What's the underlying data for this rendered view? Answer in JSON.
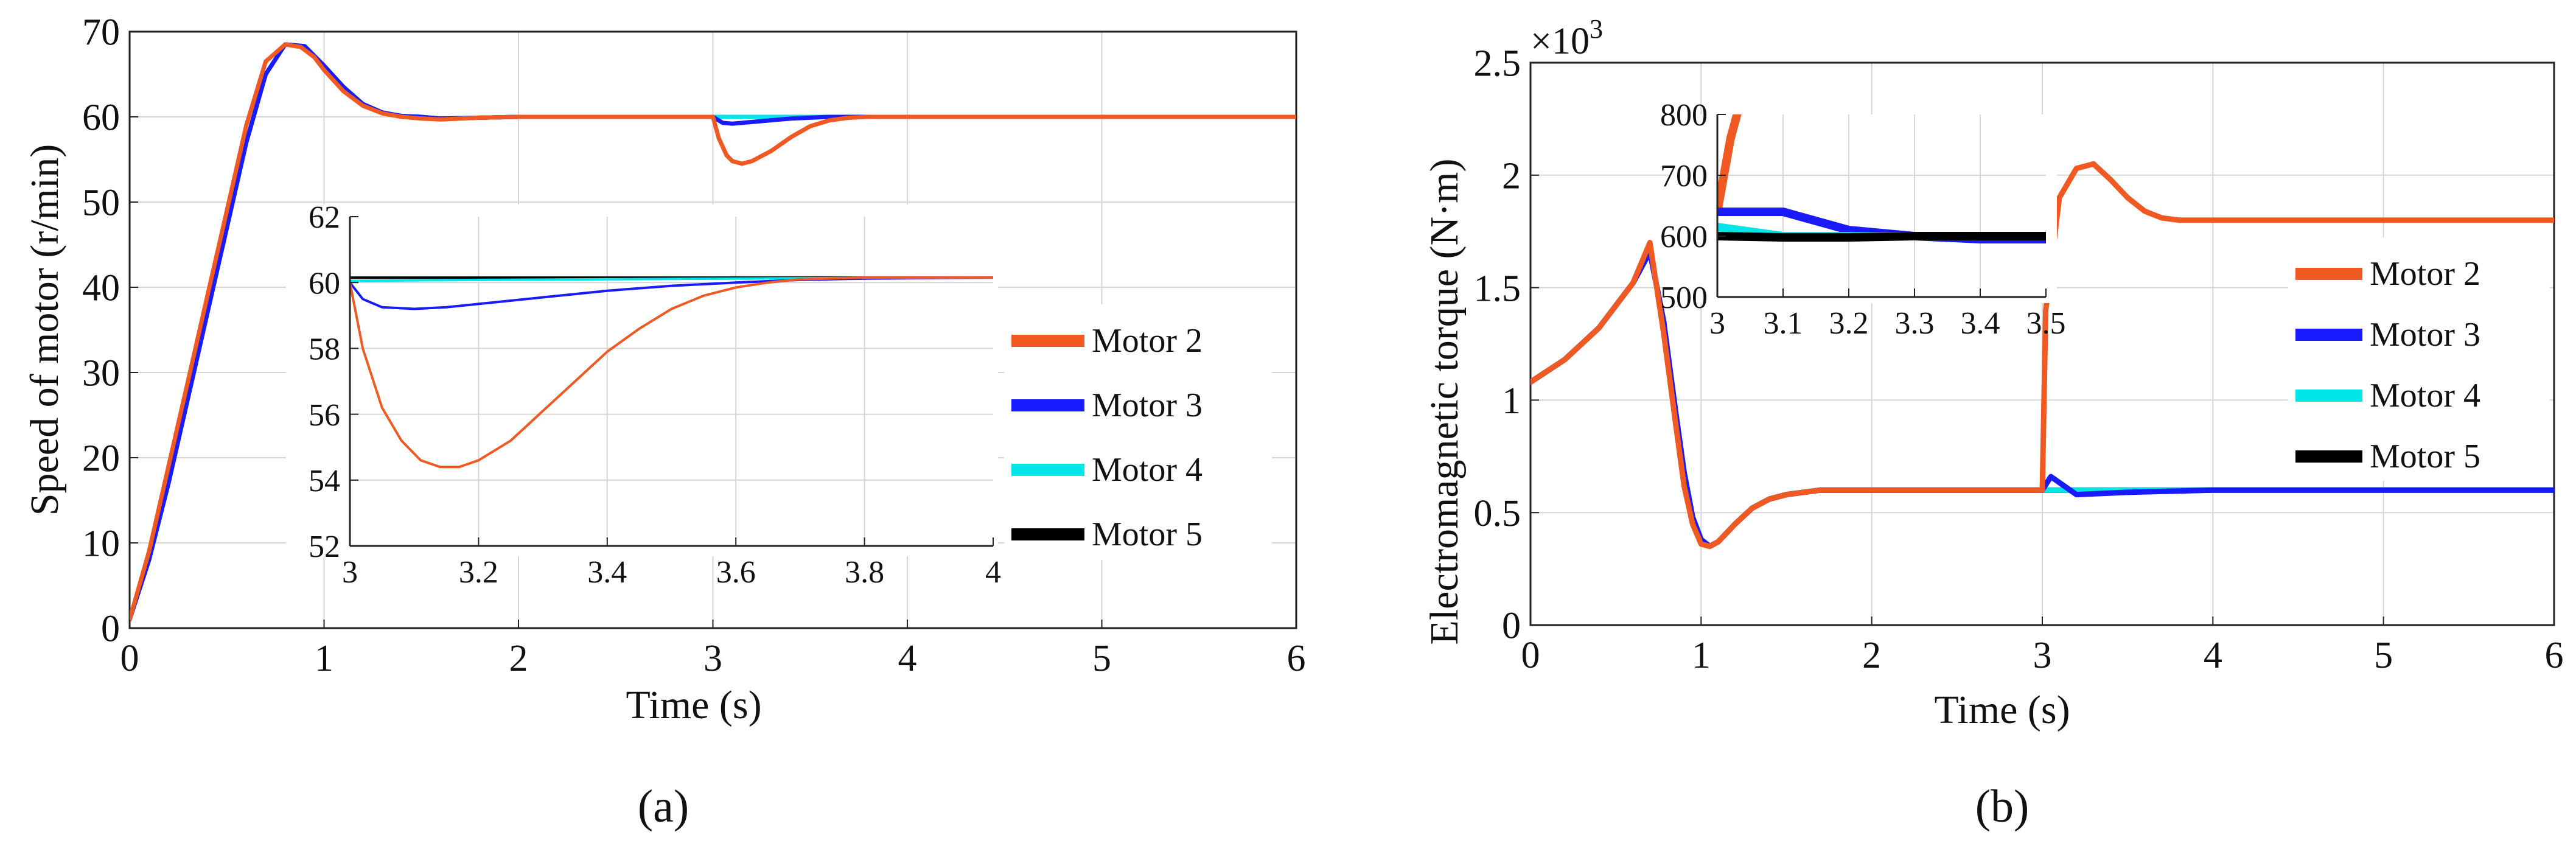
{
  "figure": {
    "panel_a_tag": "(a)",
    "panel_b_tag": "(b)"
  },
  "colors": {
    "Motor 2": "#f05a22",
    "Motor 3": "#1a1aff",
    "Motor 4": "#00e5e5",
    "Motor 5": "#000000",
    "axis": "#222222",
    "grid": "#d6d6d6"
  },
  "chart_data": [
    {
      "id": "a",
      "type": "line",
      "xlabel": "Time (s)",
      "ylabel": "Speed of motor  (r/min)",
      "xlim": [
        0,
        6
      ],
      "ylim": [
        0,
        70
      ],
      "xticks": [
        "0",
        "1",
        "2",
        "3",
        "4",
        "5",
        "6"
      ],
      "yticks": [
        "0",
        "10",
        "20",
        "30",
        "40",
        "50",
        "60",
        "70"
      ],
      "grid": true,
      "legend": [
        "Motor 2",
        "Motor 3",
        "Motor 4",
        "Motor 5"
      ],
      "legend_placement": "right",
      "series": [
        {
          "name": "Motor 5",
          "x": [
            0,
            0.1,
            0.2,
            0.3,
            0.4,
            0.5,
            0.6,
            0.7,
            0.8,
            0.9,
            1.0,
            1.1,
            1.2,
            1.3,
            1.4,
            1.5,
            1.6,
            1.8,
            2,
            3,
            4,
            5,
            6
          ],
          "y": [
            1,
            8,
            17,
            27,
            37,
            47,
            57,
            65,
            68.5,
            68.3,
            66,
            63.5,
            61.5,
            60.5,
            60.1,
            60,
            59.8,
            59.9,
            60,
            60,
            60,
            60,
            60
          ]
        },
        {
          "name": "Motor 4",
          "x": [
            0,
            0.1,
            0.2,
            0.3,
            0.4,
            0.5,
            0.6,
            0.7,
            0.8,
            0.9,
            1.0,
            1.1,
            1.2,
            1.3,
            1.4,
            1.5,
            1.6,
            1.8,
            2,
            3,
            4,
            5,
            6
          ],
          "y": [
            1,
            8,
            17,
            27,
            37,
            47,
            57,
            65,
            68.5,
            68.3,
            66,
            63.5,
            61.5,
            60.5,
            60.1,
            60,
            59.8,
            59.9,
            60,
            60,
            60,
            60,
            60
          ]
        },
        {
          "name": "Motor 3",
          "x": [
            0,
            0.1,
            0.2,
            0.3,
            0.4,
            0.5,
            0.6,
            0.7,
            0.8,
            0.9,
            1.0,
            1.1,
            1.2,
            1.3,
            1.4,
            1.5,
            1.6,
            1.8,
            2,
            3,
            3.05,
            3.1,
            3.2,
            3.3,
            3.4,
            3.6,
            3.8,
            4,
            5,
            6
          ],
          "y": [
            1,
            8,
            17,
            27,
            37,
            47,
            57,
            65,
            68.5,
            68.3,
            66,
            63.5,
            61.5,
            60.5,
            60.1,
            60,
            59.8,
            59.9,
            60,
            60,
            59.3,
            59.2,
            59.4,
            59.6,
            59.8,
            60,
            60,
            60,
            60,
            60
          ]
        },
        {
          "name": "Motor 2",
          "x": [
            0,
            0.1,
            0.2,
            0.3,
            0.4,
            0.5,
            0.6,
            0.7,
            0.8,
            0.88,
            0.95,
            1.0,
            1.1,
            1.2,
            1.3,
            1.4,
            1.5,
            1.6,
            1.8,
            2,
            3,
            3.03,
            3.07,
            3.1,
            3.15,
            3.2,
            3.3,
            3.4,
            3.5,
            3.6,
            3.7,
            3.8,
            4,
            5,
            6
          ],
          "y": [
            1,
            9,
            19,
            29,
            39,
            49,
            59,
            66.5,
            68.5,
            68.2,
            67,
            65.5,
            63,
            61.3,
            60.4,
            60,
            59.8,
            59.7,
            59.9,
            60,
            60,
            57.5,
            55.5,
            54.8,
            54.5,
            54.8,
            56,
            57.6,
            58.9,
            59.6,
            59.9,
            60,
            60,
            60,
            60
          ]
        }
      ],
      "inset": {
        "xlim": [
          3,
          4
        ],
        "ylim": [
          52,
          62
        ],
        "xticks": [
          "3",
          "3.2",
          "3.4",
          "3.6",
          "3.8",
          "4"
        ],
        "yticks": [
          "52",
          "54",
          "56",
          "58",
          "60",
          "62"
        ],
        "series": [
          {
            "name": "Motor 5",
            "x": [
              3,
              3.2,
              3.4,
              3.6,
              3.8,
              4
            ],
            "y": [
              60.15,
              60.15,
              60.15,
              60.15,
              60.15,
              60.15
            ]
          },
          {
            "name": "Motor 4",
            "x": [
              3,
              3.2,
              3.4,
              3.6,
              3.8,
              4
            ],
            "y": [
              60.05,
              60.08,
              60.1,
              60.12,
              60.14,
              60.15
            ]
          },
          {
            "name": "Motor 3",
            "x": [
              3,
              3.02,
              3.05,
              3.1,
              3.15,
              3.2,
              3.3,
              3.4,
              3.5,
              3.6,
              3.7,
              3.8,
              4
            ],
            "y": [
              60,
              59.5,
              59.25,
              59.2,
              59.25,
              59.35,
              59.55,
              59.75,
              59.9,
              60,
              60.08,
              60.12,
              60.15
            ]
          },
          {
            "name": "Motor 2",
            "x": [
              3,
              3.02,
              3.05,
              3.08,
              3.11,
              3.14,
              3.17,
              3.2,
              3.25,
              3.3,
              3.35,
              3.4,
              3.45,
              3.5,
              3.55,
              3.6,
              3.65,
              3.7,
              3.8,
              3.9,
              4
            ],
            "y": [
              60,
              58,
              56.2,
              55.2,
              54.6,
              54.4,
              54.4,
              54.6,
              55.2,
              56.1,
              57,
              57.9,
              58.6,
              59.2,
              59.6,
              59.85,
              60,
              60.1,
              60.15,
              60.15,
              60.15
            ]
          }
        ]
      }
    },
    {
      "id": "b",
      "type": "line",
      "xlabel": "Time (s)",
      "ylabel": "Electromagnetic torque (N·m)",
      "multiplier_label": "×10",
      "multiplier_exp": "3",
      "xlim": [
        0,
        6
      ],
      "ylim": [
        0,
        2.5
      ],
      "xticks": [
        "0",
        "1",
        "2",
        "3",
        "4",
        "5",
        "6"
      ],
      "yticks": [
        "0",
        "0.5",
        "1",
        "1.5",
        "2",
        "2.5"
      ],
      "grid": true,
      "legend": [
        "Motor 2",
        "Motor 3",
        "Motor 4",
        "Motor 5"
      ],
      "legend_placement": "right",
      "series": [
        {
          "name": "Motor 5",
          "x": [
            0,
            0.2,
            0.4,
            0.6,
            0.7,
            0.78,
            0.85,
            0.9,
            0.95,
            1.0,
            1.05,
            1.1,
            1.2,
            1.3,
            1.4,
            1.5,
            1.6,
            1.7,
            2,
            3,
            4,
            5,
            6
          ],
          "y": [
            1.08,
            1.18,
            1.32,
            1.52,
            1.66,
            1.35,
            0.95,
            0.68,
            0.48,
            0.38,
            0.35,
            0.37,
            0.45,
            0.52,
            0.56,
            0.58,
            0.59,
            0.6,
            0.6,
            0.6,
            0.6,
            0.6,
            0.6
          ]
        },
        {
          "name": "Motor 4",
          "x": [
            0,
            0.2,
            0.4,
            0.6,
            0.7,
            0.78,
            0.85,
            0.9,
            0.95,
            1.0,
            1.05,
            1.1,
            1.2,
            1.3,
            1.4,
            1.5,
            1.6,
            1.7,
            2,
            3,
            4,
            5,
            6
          ],
          "y": [
            1.08,
            1.18,
            1.32,
            1.52,
            1.66,
            1.35,
            0.95,
            0.68,
            0.48,
            0.38,
            0.35,
            0.37,
            0.45,
            0.52,
            0.56,
            0.58,
            0.59,
            0.6,
            0.6,
            0.6,
            0.6,
            0.6,
            0.6
          ]
        },
        {
          "name": "Motor 3",
          "x": [
            0,
            0.2,
            0.4,
            0.6,
            0.7,
            0.78,
            0.85,
            0.9,
            0.95,
            1.0,
            1.05,
            1.1,
            1.2,
            1.3,
            1.4,
            1.5,
            1.6,
            1.7,
            2,
            3,
            3.05,
            3.2,
            3.5,
            4,
            5,
            6
          ],
          "y": [
            1.08,
            1.18,
            1.32,
            1.52,
            1.66,
            1.35,
            0.95,
            0.68,
            0.48,
            0.38,
            0.35,
            0.37,
            0.45,
            0.52,
            0.56,
            0.58,
            0.59,
            0.6,
            0.6,
            0.6,
            0.66,
            0.58,
            0.59,
            0.6,
            0.6,
            0.6
          ]
        },
        {
          "name": "Motor 2",
          "x": [
            0,
            0.2,
            0.4,
            0.6,
            0.7,
            0.78,
            0.85,
            0.9,
            0.95,
            1.0,
            1.05,
            1.1,
            1.2,
            1.3,
            1.4,
            1.5,
            1.6,
            1.7,
            2,
            3,
            3.02,
            3.1,
            3.2,
            3.3,
            3.4,
            3.5,
            3.6,
            3.7,
            3.8,
            4,
            5,
            6
          ],
          "y": [
            1.08,
            1.18,
            1.32,
            1.52,
            1.7,
            1.3,
            0.9,
            0.62,
            0.45,
            0.36,
            0.35,
            0.37,
            0.45,
            0.52,
            0.56,
            0.58,
            0.59,
            0.6,
            0.6,
            0.6,
            1.4,
            1.9,
            2.03,
            2.05,
            1.98,
            1.9,
            1.84,
            1.81,
            1.8,
            1.8,
            1.8,
            1.8
          ]
        }
      ],
      "inset": {
        "xlim": [
          3,
          3.5
        ],
        "ylim": [
          500,
          800
        ],
        "xticks": [
          "3",
          "3.1",
          "3.2",
          "3.3",
          "3.4",
          "3.5"
        ],
        "yticks": [
          "500",
          "600",
          "700",
          "800"
        ],
        "series": [
          {
            "name": "Motor 2",
            "x": [
              3,
              3.01,
              3.02,
              3.03
            ],
            "y": [
              640,
              700,
              760,
              800
            ]
          },
          {
            "name": "Motor 3",
            "x": [
              3,
              3.1,
              3.2,
              3.3,
              3.4,
              3.5
            ],
            "y": [
              640,
              640,
              610,
              600,
              595,
              595
            ]
          },
          {
            "name": "Motor 4",
            "x": [
              3,
              3.1,
              3.2,
              3.3,
              3.4,
              3.5
            ],
            "y": [
              615,
              600,
              600,
              600,
              600,
              600
            ]
          },
          {
            "name": "Motor 5",
            "x": [
              3,
              3.1,
              3.2,
              3.3,
              3.4,
              3.5
            ],
            "y": [
              600,
              598,
              598,
              600,
              600,
              600
            ]
          }
        ]
      }
    }
  ]
}
